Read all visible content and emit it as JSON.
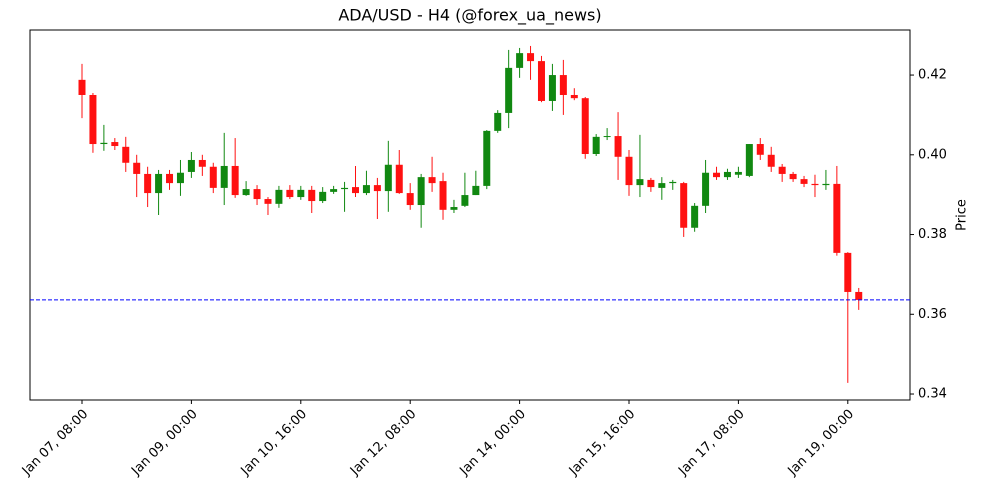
{
  "chart_data": {
    "type": "candlestick",
    "title": "ADA/USD - H4 (@forex_ua_news)",
    "y_label": "Price",
    "categories": [
      "Jan 07, 08:00",
      null,
      null,
      null,
      null,
      null,
      null,
      null,
      null,
      null,
      "Jan 09, 00:00",
      null,
      null,
      null,
      null,
      null,
      null,
      null,
      null,
      null,
      "Jan 10, 16:00",
      null,
      null,
      null,
      null,
      null,
      null,
      null,
      null,
      null,
      "Jan 12, 08:00",
      null,
      null,
      null,
      null,
      null,
      null,
      null,
      null,
      null,
      "Jan 14, 00:00",
      null,
      null,
      null,
      null,
      null,
      null,
      null,
      null,
      null,
      "Jan 15, 16:00",
      null,
      null,
      null,
      null,
      null,
      null,
      null,
      null,
      null,
      "Jan 17, 08:00",
      null,
      null,
      null,
      null,
      null,
      null,
      null,
      null,
      null,
      "Jan 19, 00:00",
      null
    ],
    "open": [
      0.4188,
      0.415,
      0.4027,
      0.4032,
      0.402,
      0.398,
      0.3952,
      0.3904,
      0.3952,
      0.3929,
      0.3957,
      0.3987,
      0.397,
      0.3917,
      0.3972,
      0.3899,
      0.3914,
      0.3889,
      0.3877,
      0.3912,
      0.3894,
      0.3912,
      0.3884,
      0.3907,
      0.3914,
      0.3919,
      0.3904,
      0.3924,
      0.3909,
      0.3975,
      0.3904,
      0.3874,
      0.3944,
      0.3934,
      0.3862,
      0.3872,
      0.3899,
      0.3922,
      0.406,
      0.4105,
      0.4218,
      0.4255,
      0.4235,
      0.4135,
      0.42,
      0.415,
      0.4142,
      0.4002,
      0.4045,
      0.4047,
      0.3995,
      0.3924,
      0.3937,
      0.3917,
      0.3929,
      0.3929,
      0.3817,
      0.3872,
      0.3955,
      0.3944,
      0.395,
      0.3947,
      0.4027,
      0.4,
      0.397,
      0.3952,
      0.3939,
      0.3927,
      0.3924,
      0.3927,
      0.3754,
      0.3656
    ],
    "high": [
      0.4228,
      0.4155,
      0.4075,
      0.4042,
      0.4045,
      0.4,
      0.397,
      0.3962,
      0.3962,
      0.3987,
      0.4007,
      0.4,
      0.398,
      0.4055,
      0.4042,
      0.3934,
      0.3924,
      0.3894,
      0.3922,
      0.3924,
      0.3922,
      0.3922,
      0.3919,
      0.3922,
      0.3932,
      0.3972,
      0.396,
      0.3942,
      0.4035,
      0.4012,
      0.3929,
      0.3952,
      0.3995,
      0.3955,
      0.3887,
      0.3955,
      0.396,
      0.4062,
      0.4112,
      0.4263,
      0.4268,
      0.4273,
      0.4248,
      0.4228,
      0.4238,
      0.4167,
      0.4145,
      0.4052,
      0.4067,
      0.4107,
      0.4012,
      0.405,
      0.3942,
      0.3944,
      0.3937,
      0.3932,
      0.3879,
      0.3987,
      0.397,
      0.3965,
      0.397,
      0.4027,
      0.4042,
      0.402,
      0.3977,
      0.3957,
      0.3947,
      0.395,
      0.3962,
      0.3972,
      0.3756,
      0.3666
    ],
    "low": [
      0.4092,
      0.4005,
      0.401,
      0.4012,
      0.3957,
      0.3894,
      0.3869,
      0.3849,
      0.3912,
      0.3897,
      0.3942,
      0.3947,
      0.3904,
      0.3874,
      0.3892,
      0.3897,
      0.3874,
      0.3849,
      0.3867,
      0.3889,
      0.3887,
      0.3854,
      0.3879,
      0.3902,
      0.3857,
      0.3894,
      0.3899,
      0.3839,
      0.3857,
      0.3902,
      0.3862,
      0.3817,
      0.3907,
      0.3837,
      0.3854,
      0.3869,
      0.3899,
      0.3914,
      0.4055,
      0.4067,
      0.4193,
      0.4188,
      0.4132,
      0.411,
      0.41,
      0.4137,
      0.399,
      0.3997,
      0.4037,
      0.3937,
      0.3897,
      0.3894,
      0.3907,
      0.3887,
      0.3912,
      0.3794,
      0.3807,
      0.3854,
      0.3937,
      0.3937,
      0.3942,
      0.3944,
      0.3987,
      0.3957,
      0.3932,
      0.3932,
      0.3919,
      0.3894,
      0.3912,
      0.3747,
      0.3428,
      0.3611
    ],
    "close": [
      0.415,
      0.4027,
      0.403,
      0.4022,
      0.398,
      0.3952,
      0.3904,
      0.3952,
      0.3929,
      0.3955,
      0.3987,
      0.397,
      0.3917,
      0.3972,
      0.3899,
      0.3914,
      0.3889,
      0.3877,
      0.3912,
      0.3894,
      0.3912,
      0.3884,
      0.3907,
      0.3914,
      0.3917,
      0.3904,
      0.3924,
      0.3909,
      0.3975,
      0.3904,
      0.3874,
      0.3944,
      0.3929,
      0.3862,
      0.3869,
      0.3899,
      0.3922,
      0.406,
      0.4105,
      0.4218,
      0.4255,
      0.4235,
      0.4135,
      0.42,
      0.415,
      0.4142,
      0.4002,
      0.4045,
      0.4047,
      0.3995,
      0.3924,
      0.3939,
      0.3919,
      0.3929,
      0.3932,
      0.3817,
      0.3872,
      0.3955,
      0.3944,
      0.3957,
      0.3957,
      0.4027,
      0.4,
      0.397,
      0.3952,
      0.3939,
      0.3927,
      0.3924,
      0.3927,
      0.3754,
      0.3656,
      0.3636
    ],
    "up_color": "#118811",
    "down_color": "#ff1111",
    "hline": {
      "value": 0.3636,
      "color": "#0000ff",
      "style": "dashed"
    },
    "ylim": [
      0.3385,
      0.4313
    ],
    "yticks": [
      0.34,
      0.36,
      0.38,
      {
        "value": 0.4,
        "label": "0.40"
      },
      0.42
    ],
    "y_axis_side": "right",
    "grid": false
  }
}
